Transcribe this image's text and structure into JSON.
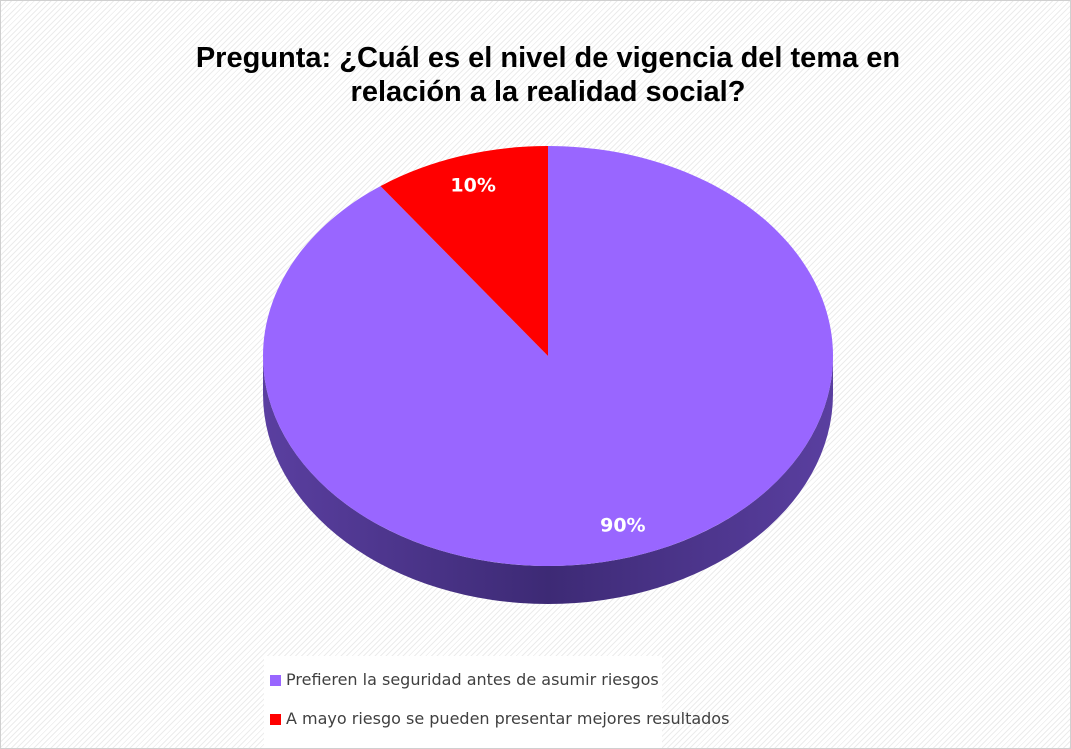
{
  "chart_data": {
    "type": "pie",
    "title": "Pregunta: ¿Cuál es el nivel de vigencia del tema en relación a la realidad social?",
    "categories": [
      "Prefieren la seguridad antes de asumir riesgos",
      "A mayo riesgo se pueden presentar mejores resultados"
    ],
    "values": [
      90,
      10
    ],
    "value_labels": [
      "90%",
      "10%"
    ],
    "colors": [
      "#9966ff",
      "#ff0000"
    ],
    "legend": "bottom"
  }
}
